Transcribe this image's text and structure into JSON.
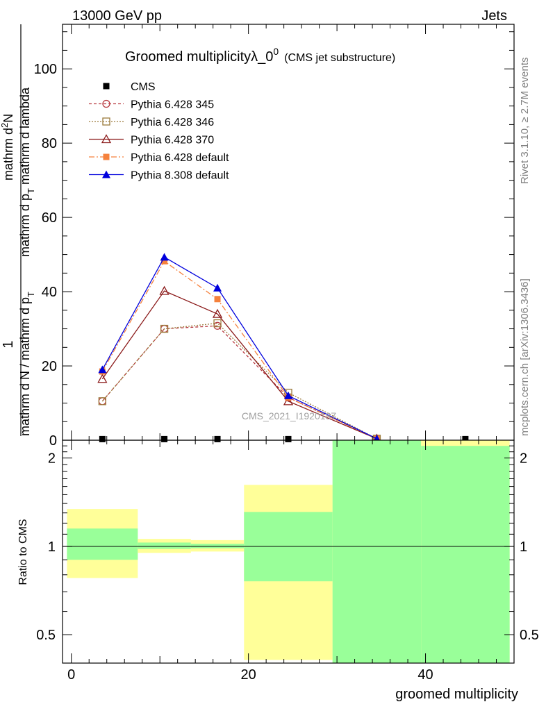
{
  "header": {
    "energy_label": "13000 GeV pp",
    "process_label": "Jets"
  },
  "side_labels": {
    "rivet": "Rivet 3.1.10, ≥ 2.7M events",
    "site": "mcplots.cern.ch [arXiv:1306.3436]"
  },
  "watermark": "CMS_2021_I1920187",
  "chart_data": [
    {
      "type": "line",
      "title": "Groomed multiplicityλ_0",
      "title_superscript": "0",
      "subtitle": "(CMS jet substructure)",
      "ylabel_fraction_numerator": "1",
      "ylabel_fraction_denominator": "mathrm d N / mathrm d p",
      "ylabel_fraction_denominator_sub": "T",
      "ylabel_main_numerator": "mathrm d",
      "ylabel_main_numerator_sup": "2",
      "ylabel_main_numerator_tail": "N",
      "ylabel_main_denominator": "mathrm d p",
      "ylabel_main_denominator_sub": "T",
      "ylabel_main_denominator_tail": " mathrm d lambda",
      "ylim": [
        0,
        112
      ],
      "xlim": [
        -1,
        50
      ],
      "y_ticks": [
        "0",
        "20",
        "40",
        "60",
        "80",
        "100"
      ],
      "y_tick_values": [
        0,
        20,
        40,
        60,
        80,
        100
      ],
      "legend_position": "top-left",
      "series": [
        {
          "name": "CMS",
          "color": "#000000",
          "marker": "square-filled",
          "dash": "none",
          "x": [
            3.5,
            10.5,
            16.5,
            24.5,
            34.5,
            44.5
          ],
          "y": [
            0.3,
            0.3,
            0.3,
            0.3,
            0.3,
            0.3
          ]
        },
        {
          "name": "Pythia 6.428 345",
          "color": "#b8383f",
          "marker": "circle-open",
          "dash": "4,3",
          "x": [
            3.5,
            10.5,
            16.5,
            24.5,
            34.5
          ],
          "y": [
            10.5,
            30,
            30.8,
            11.5,
            0.4
          ]
        },
        {
          "name": "Pythia 6.428 346",
          "color": "#9c7b3c",
          "marker": "square-open",
          "dash": "2,2",
          "x": [
            3.5,
            10.5,
            16.5,
            24.5,
            34.5
          ],
          "y": [
            10.5,
            30,
            31.5,
            12.8,
            0.4
          ]
        },
        {
          "name": "Pythia 6.428 370",
          "color": "#8b1a1a",
          "marker": "triangle-open",
          "dash": "none",
          "x": [
            3.5,
            10.5,
            16.5,
            24.5,
            34.5
          ],
          "y": [
            16.5,
            40.2,
            34,
            10.5,
            0.4
          ]
        },
        {
          "name": "Pythia 6.428 default",
          "color": "#f5813c",
          "marker": "square-filled",
          "dash": "8,3,2,3",
          "x": [
            3.5,
            10.5,
            16.5,
            24.5,
            34.5
          ],
          "y": [
            18.5,
            48.2,
            38,
            11.5,
            0.4
          ]
        },
        {
          "name": "Pythia 8.308 default",
          "color": "#0000dd",
          "marker": "triangle-filled",
          "dash": "none",
          "x": [
            3.5,
            10.5,
            16.5,
            24.5,
            34.5
          ],
          "y": [
            19,
            49.3,
            41,
            12,
            0.4
          ]
        }
      ]
    },
    {
      "type": "area",
      "ylabel": "Ratio to CMS",
      "xlabel": "groomed multiplicity",
      "scale": "log",
      "ylim": [
        0.4,
        2.3
      ],
      "xlim": [
        -1,
        50
      ],
      "y_ticks": [
        "0.5",
        "1",
        "2"
      ],
      "y_tick_values": [
        0.5,
        1,
        2
      ],
      "x_ticks": [
        "0",
        "20",
        "40"
      ],
      "x_tick_values": [
        0,
        20,
        40
      ],
      "reference_line": 1,
      "band_colors": {
        "outer": "#ffff99",
        "inner": "#99ff99"
      },
      "bins": [
        {
          "x_low": -0.5,
          "x_high": 7.5,
          "outer": [
            0.78,
            1.34
          ],
          "inner": [
            0.9,
            1.15
          ]
        },
        {
          "x_low": 7.5,
          "x_high": 13.5,
          "outer": [
            0.95,
            1.06
          ],
          "inner": [
            0.98,
            1.03
          ]
        },
        {
          "x_low": 13.5,
          "x_high": 19.5,
          "outer": [
            0.96,
            1.05
          ],
          "inner": [
            0.985,
            1.02
          ]
        },
        {
          "x_low": 19.5,
          "x_high": 29.5,
          "outer": [
            0.41,
            1.62
          ],
          "inner": [
            0.76,
            1.31
          ]
        },
        {
          "x_low": 29.5,
          "x_high": 39.5,
          "outer": [
            0.3,
            2.5
          ],
          "inner": [
            0.3,
            2.5
          ]
        },
        {
          "x_low": 39.5,
          "x_high": 49.5,
          "outer": [
            0.3,
            2.5
          ],
          "inner": [
            0.3,
            2.2
          ]
        }
      ]
    }
  ]
}
